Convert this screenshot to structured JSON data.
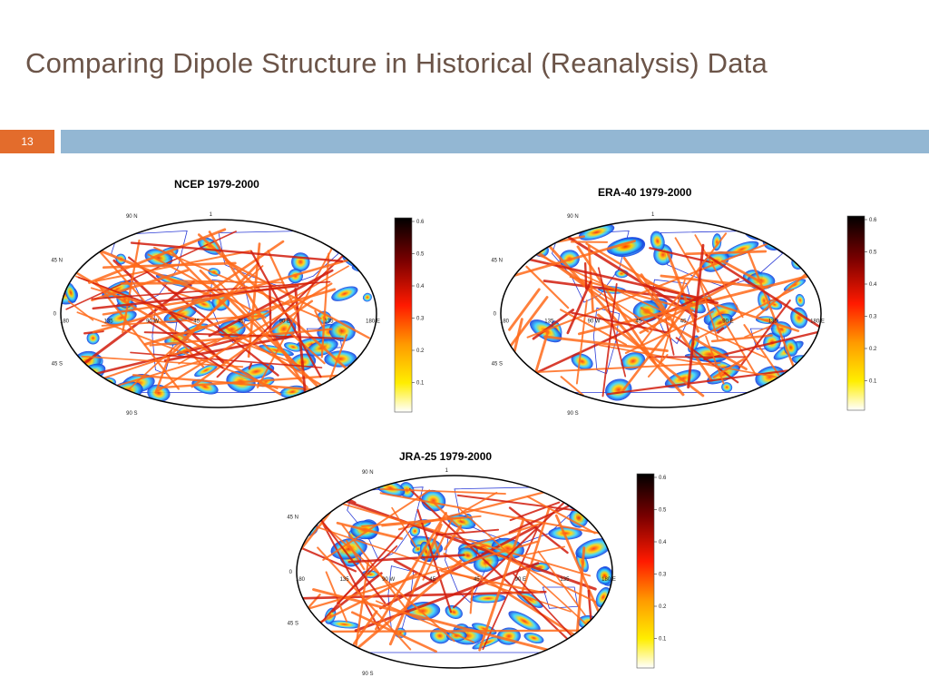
{
  "slide": {
    "title": "Comparing Dipole Structure in Historical (Reanalysis) Data",
    "number": "13"
  },
  "colors": {
    "title": "#6b5448",
    "number_box": "#e36c2c",
    "band": "#93b7d3",
    "ocean": "#ffffff",
    "coast": "#2b3bd6",
    "link": "#ff6a1a",
    "link_dark": "#d21d0e"
  },
  "maps": [
    {
      "id": "ncep",
      "label": "NCEP 1979-2000",
      "lat_ticks": [
        "45 N",
        "0",
        "45 S"
      ],
      "lat_top": "90 N",
      "lat_bottom": "90 S",
      "lon_ticks": [
        "180",
        "135",
        "90 W",
        "45",
        "45",
        "90 E",
        "135",
        "180 E"
      ],
      "top_tick": "1",
      "colorbar_ticks": [
        "0.6",
        "0.5",
        "0.4",
        "0.3",
        "0.2",
        "0.1"
      ]
    },
    {
      "id": "era40",
      "label": "ERA-40 1979-2000",
      "lat_ticks": [
        "45 N",
        "0",
        "45 S"
      ],
      "lat_top": "90 N",
      "lat_bottom": "90 S",
      "lon_ticks": [
        "180",
        "135",
        "90 W",
        "45",
        "45",
        "90 E",
        "135",
        "180 E"
      ],
      "top_tick": "1",
      "colorbar_ticks": [
        "0.6",
        "0.5",
        "0.4",
        "0.3",
        "0.2",
        "0.1"
      ]
    },
    {
      "id": "jra25",
      "label": "JRA-25 1979-2000",
      "lat_ticks": [
        "45 N",
        "0",
        "45 S"
      ],
      "lat_top": "90 N",
      "lat_bottom": "90 S",
      "lon_ticks": [
        "180",
        "135",
        "90 W",
        "45",
        "45",
        "90 E",
        "135",
        "180 E"
      ],
      "top_tick": "1",
      "colorbar_ticks": [
        "0.6",
        "0.5",
        "0.4",
        "0.3",
        "0.2",
        "0.1"
      ]
    }
  ]
}
